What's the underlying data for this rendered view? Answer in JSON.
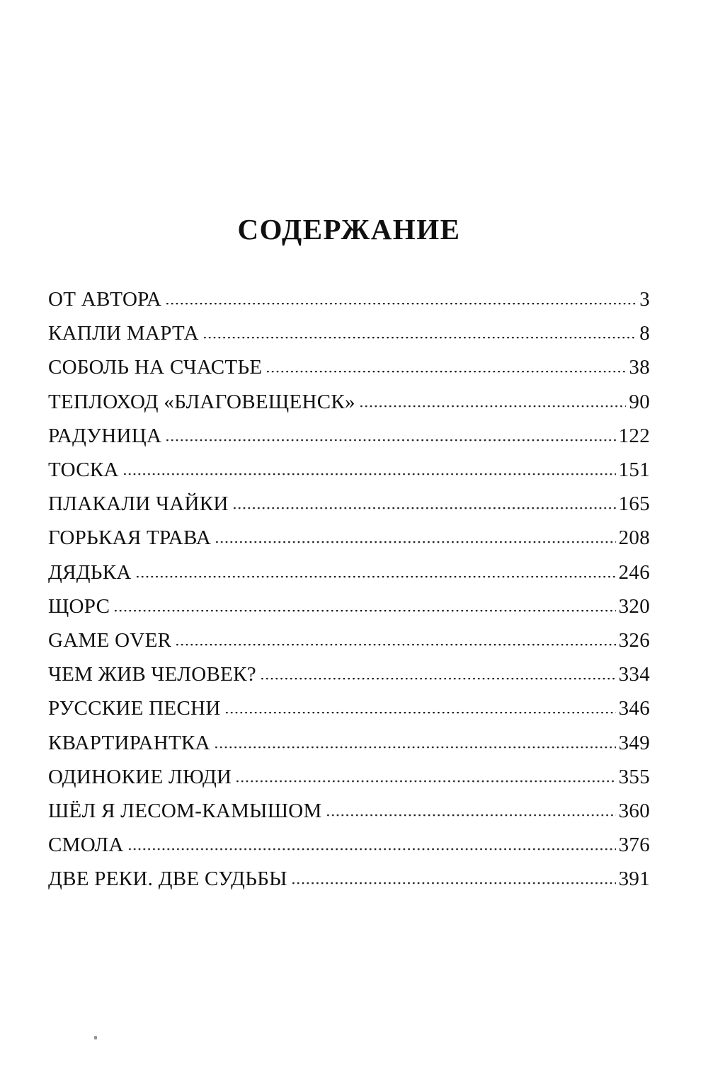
{
  "page": {
    "title": "СОДЕРЖАНИЕ",
    "entries": [
      {
        "title": "ОТ АВТОРА",
        "page": "3"
      },
      {
        "title": "КАПЛИ МАРТА",
        "page": "8"
      },
      {
        "title": "СОБОЛЬ НА СЧАСТЬЕ",
        "page": "38"
      },
      {
        "title": "ТЕПЛОХОД «БЛАГОВЕЩЕНСК»",
        "page": "90"
      },
      {
        "title": "РАДУНИЦА",
        "page": "122"
      },
      {
        "title": "ТОСКА",
        "page": "151"
      },
      {
        "title": "ПЛАКАЛИ ЧАЙКИ",
        "page": "165"
      },
      {
        "title": "ГОРЬКАЯ ТРАВА",
        "page": "208"
      },
      {
        "title": "ДЯДЬКА",
        "page": "246"
      },
      {
        "title": "ЩОРС",
        "page": "320"
      },
      {
        "title": "GAME OVER",
        "page": "326"
      },
      {
        "title": "ЧЕМ ЖИВ ЧЕЛОВЕК?",
        "page": "334"
      },
      {
        "title": "РУССКИЕ ПЕСНИ",
        "page": "346"
      },
      {
        "title": "КВАРТИРАНТКА",
        "page": "349"
      },
      {
        "title": "ОДИНОКИЕ ЛЮДИ",
        "page": "355"
      },
      {
        "title": "ШЁЛ Я ЛЕСОМ-КАМЫШОМ",
        "page": "360"
      },
      {
        "title": "СМОЛА",
        "page": "376"
      },
      {
        "title": "ДВЕ РЕКИ. ДВЕ СУДЬБЫ",
        "page": "391"
      }
    ]
  }
}
